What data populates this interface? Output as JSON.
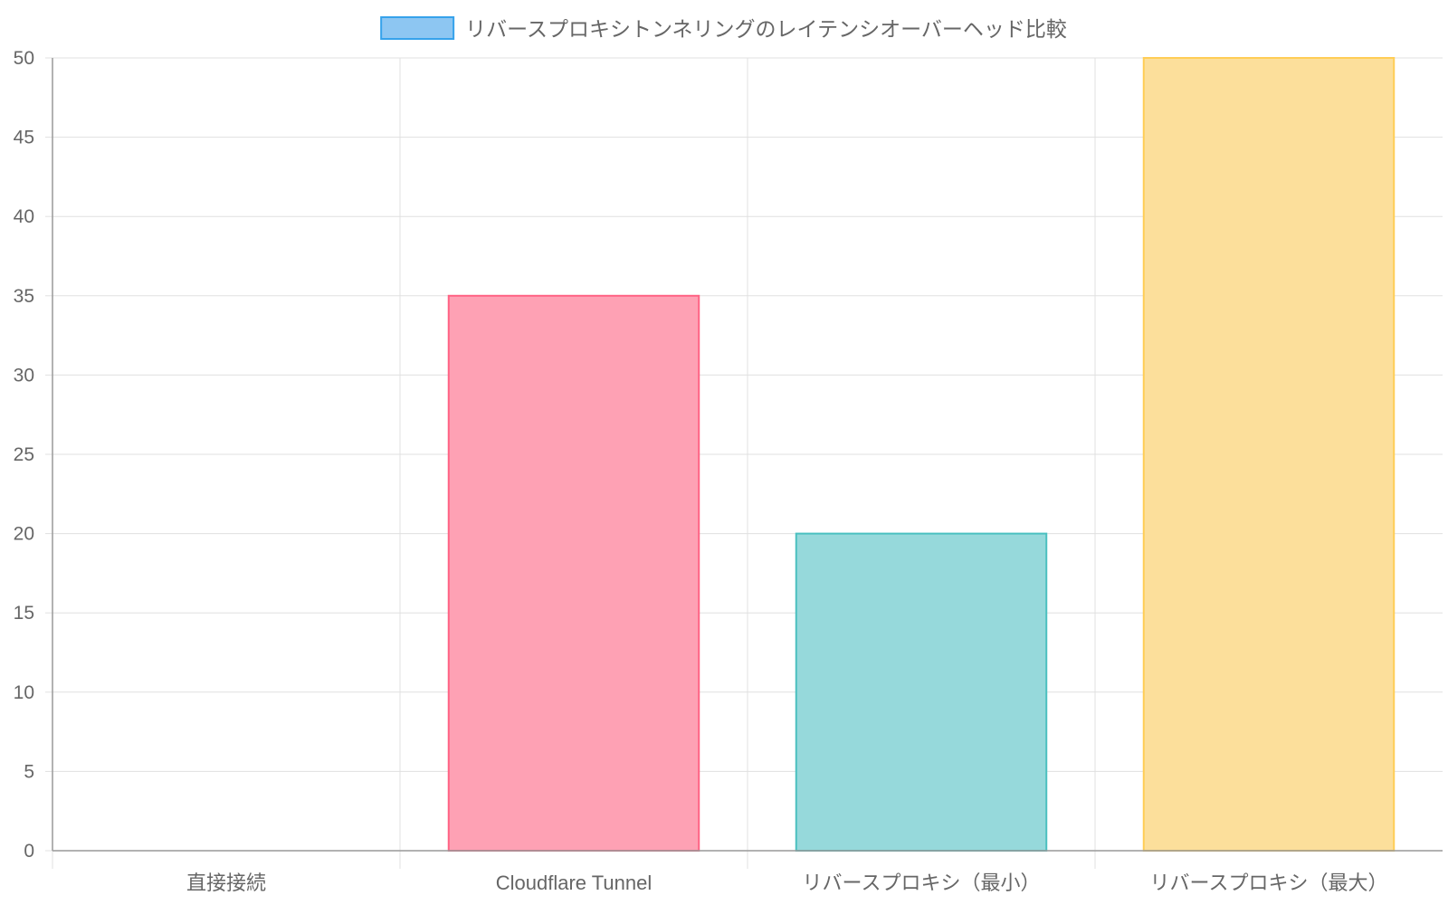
{
  "chart_data": {
    "type": "bar",
    "categories": [
      "直接接続",
      "Cloudflare Tunnel",
      "リバースプロキシ（最小）",
      "リバースプロキシ（最大）"
    ],
    "series": [
      {
        "name": "リバースプロキシトンネリングのレイテンシオーバーヘッド比較",
        "values": [
          0,
          35,
          20,
          50
        ]
      }
    ],
    "ylim": [
      0,
      50
    ],
    "yticks": [
      0,
      5,
      10,
      15,
      20,
      25,
      30,
      35,
      40,
      45,
      50
    ],
    "grid": true,
    "legend_position": "top",
    "colors": {
      "legend_fill": "#8dc6f2",
      "legend_stroke": "#36a2eb",
      "bar_fills": [
        "#a9d6f5",
        "#fea1b4",
        "#96d9db",
        "#fcdf9b"
      ],
      "bar_strokes": [
        "#36a2eb",
        "#ff6384",
        "#4bc0c0",
        "#ffcd56"
      ],
      "grid": "#e0e0e0",
      "axis": "#999999",
      "text": "#666666"
    }
  }
}
